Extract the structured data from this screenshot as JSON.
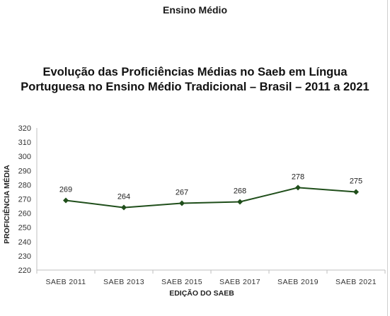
{
  "page": {
    "header": "Ensino Médio"
  },
  "chart_data": {
    "type": "line",
    "title_line1": "Evolução das Proficiências Médias no Saeb em Língua",
    "title_line2": "Portuguesa no Ensino Médio Tradicional – Brasil – 2011 a 2021",
    "xlabel": "EDIÇÃO DO SAEB",
    "ylabel": "PROFICIÊNCIA MÉDIA",
    "categories": [
      "SAEB 2011",
      "SAEB 2013",
      "SAEB 2015",
      "SAEB 2017",
      "SAEB 2019",
      "SAEB 2021"
    ],
    "series": [
      {
        "values": [
          269,
          264,
          267,
          268,
          278,
          275
        ]
      }
    ],
    "ylim": [
      220,
      320
    ],
    "yticks": [
      220,
      230,
      240,
      250,
      260,
      270,
      280,
      290,
      300,
      310,
      320
    ],
    "grid": false,
    "legend": "none",
    "line_color": "#1f4e1a",
    "marker": "diamond",
    "data_labels": true
  }
}
